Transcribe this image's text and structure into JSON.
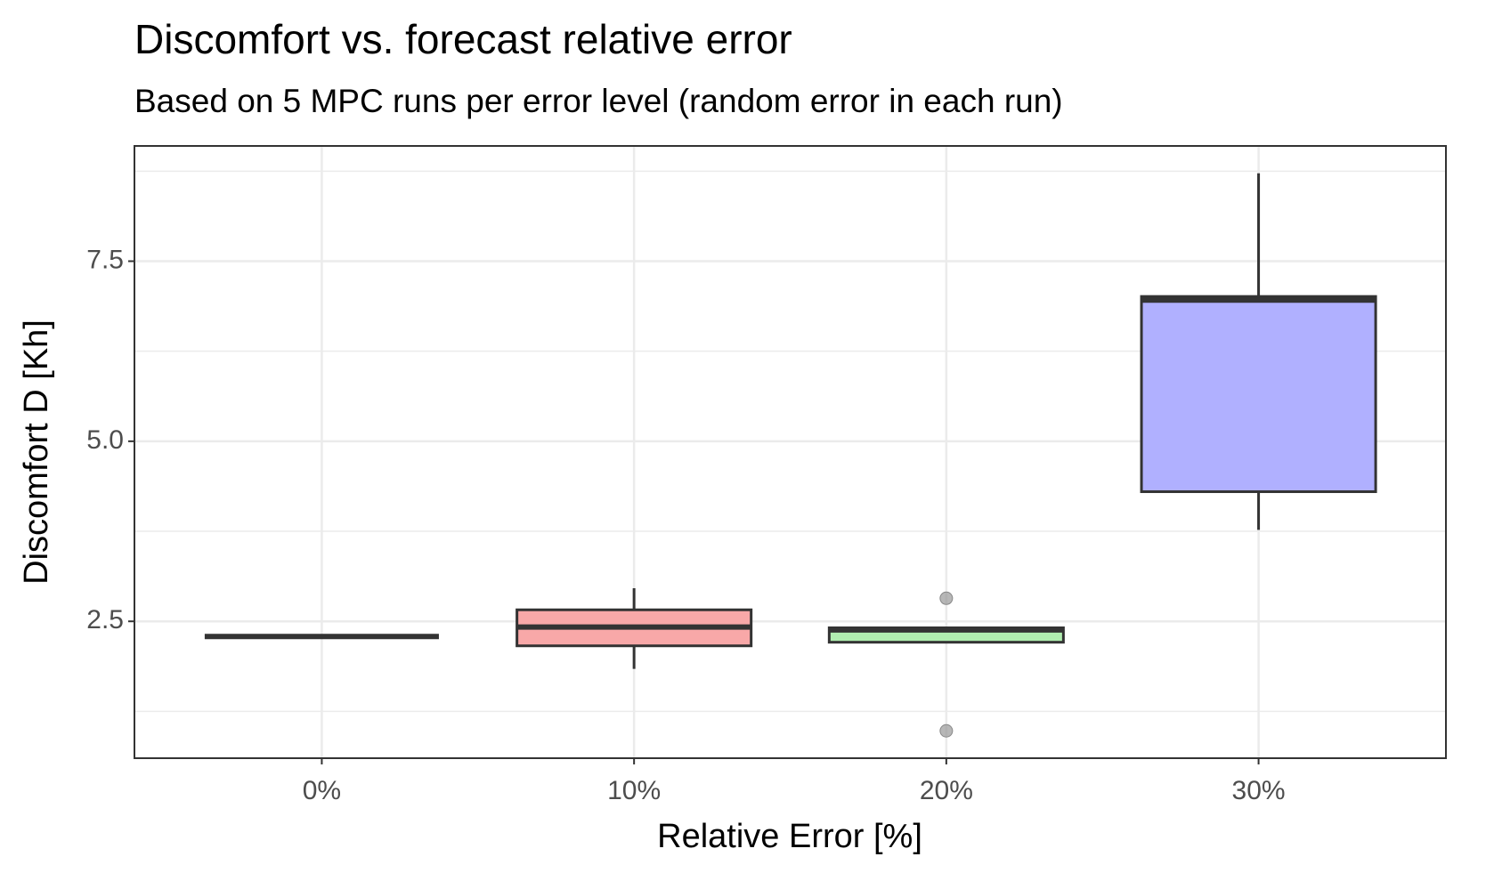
{
  "chart_data": {
    "type": "boxplot",
    "title": "Discomfort vs. forecast relative error",
    "subtitle": "Based on 5 MPC runs per error level (random error in each run)",
    "x_label": "Relative Error [%]",
    "y_label": "Discomfort D [Kh]",
    "categories": [
      "0%",
      "10%",
      "20%",
      "30%"
    ],
    "colors": [
      "#f8a8a8",
      "#f8a8a8",
      "#b0eeb0",
      "#b0b0ff"
    ],
    "min": [
      2.29,
      1.84,
      2.21,
      3.77
    ],
    "q1": [
      2.29,
      2.16,
      2.21,
      4.3
    ],
    "median": [
      2.29,
      2.42,
      2.38,
      6.96
    ],
    "q3": [
      2.29,
      2.66,
      2.41,
      7.01
    ],
    "max": [
      2.29,
      2.96,
      2.41,
      8.72
    ],
    "outliers": [
      [],
      [],
      [
        2.82,
        0.98
      ],
      []
    ],
    "ylim": [
      0.6,
      9.1
    ],
    "yticks": [
      {
        "value": 2.5,
        "label": "2.5"
      },
      {
        "value": 5,
        "label": "5.0"
      },
      {
        "value": 7.5,
        "label": "7.5"
      }
    ],
    "minor_grid": [
      1.25,
      3.75,
      6.25,
      8.75
    ],
    "grid": true
  }
}
